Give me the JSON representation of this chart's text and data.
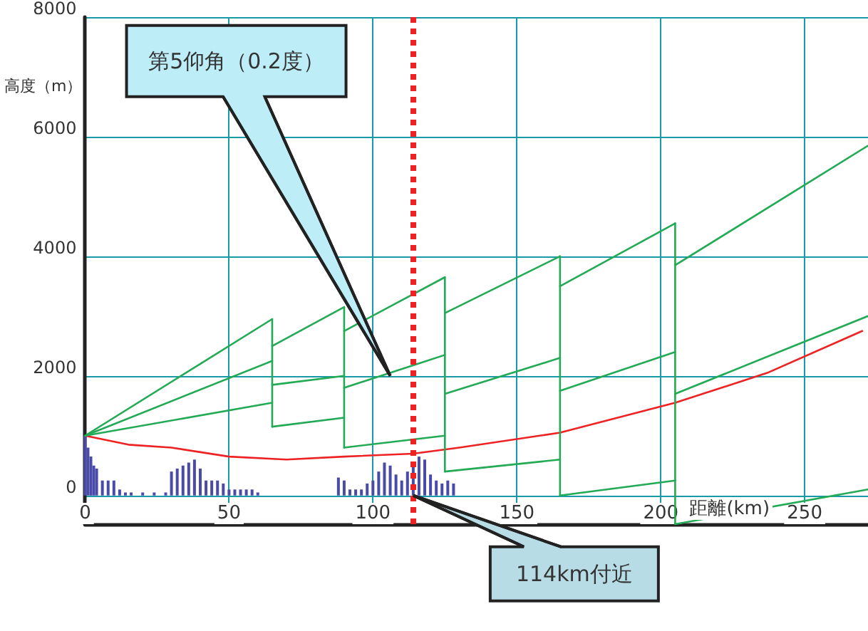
{
  "chart_data": {
    "type": "line",
    "xlabel": "距離(km)",
    "ylabel": "高度（m）",
    "xlim": [
      0,
      272
    ],
    "ylim": [
      -480,
      8000
    ],
    "xticks": [
      0,
      50,
      100,
      150,
      200,
      250
    ],
    "yticks": [
      0,
      2000,
      4000,
      6000,
      8000
    ],
    "grid": true,
    "marker": "none",
    "series": [
      {
        "type": "bar",
        "color": "#4a4aa8",
        "x": [
          0,
          1,
          2,
          3,
          4,
          6,
          8,
          10,
          12,
          14,
          16,
          20,
          24,
          28,
          30,
          32,
          34,
          36,
          38,
          40,
          42,
          44,
          46,
          48,
          50,
          52,
          54,
          56,
          58,
          60,
          88,
          90,
          92,
          94,
          96,
          98,
          100,
          102,
          104,
          106,
          108,
          110,
          112,
          114,
          116,
          118,
          120,
          122,
          124,
          126,
          128
        ],
        "values": [
          1000,
          800,
          650,
          500,
          450,
          250,
          250,
          250,
          100,
          50,
          50,
          50,
          50,
          50,
          400,
          450,
          500,
          550,
          600,
          450,
          250,
          250,
          250,
          200,
          100,
          100,
          100,
          100,
          100,
          50,
          300,
          250,
          100,
          100,
          100,
          200,
          250,
          400,
          550,
          500,
          350,
          250,
          400,
          500,
          650,
          600,
          350,
          250,
          200,
          250,
          200
        ]
      },
      {
        "color": "#ee2222",
        "x": [
          0,
          15,
          30,
          50,
          70,
          90,
          114,
          130,
          165,
          205,
          237,
          270
        ],
        "values": [
          1000,
          850,
          800,
          650,
          600,
          650,
          700,
          800,
          1050,
          1550,
          2050,
          2750
        ]
      },
      {
        "color": "#22aa55",
        "x": [
          0,
          65,
          null,
          65,
          90,
          null,
          90,
          125,
          null,
          125,
          165,
          null,
          165,
          205,
          null,
          205,
          272
        ],
        "values": [
          1000,
          2950,
          null,
          2500,
          3150,
          null,
          2750,
          3650,
          null,
          3050,
          4000,
          null,
          3500,
          4550,
          null,
          3850,
          5850
        ]
      },
      {
        "color": "#22aa55",
        "x": [
          0,
          65,
          null,
          65,
          90,
          null,
          90,
          125,
          null,
          125,
          165,
          null,
          165,
          205,
          null,
          205,
          272
        ],
        "values": [
          1000,
          2250,
          null,
          1850,
          2000,
          null,
          1800,
          2350,
          null,
          1700,
          2300,
          null,
          1750,
          2400,
          null,
          1700,
          3000
        ]
      },
      {
        "color": "#22aa55",
        "x": [
          0,
          65,
          null,
          65,
          90,
          null,
          90,
          125,
          null,
          125,
          165,
          null,
          165,
          205,
          null,
          205,
          272
        ],
        "values": [
          1000,
          1550,
          null,
          1150,
          1300,
          null,
          800,
          1000,
          null,
          400,
          600,
          null,
          0,
          250,
          null,
          -480,
          100
        ]
      },
      {
        "color": "#22aa55",
        "x": [
          65,
          65,
          null,
          90,
          90,
          null,
          125,
          125,
          null,
          165,
          165,
          null,
          205,
          205
        ],
        "values": [
          2950,
          1150,
          null,
          3150,
          800,
          null,
          3650,
          400,
          null,
          4000,
          0,
          null,
          4550,
          -480
        ]
      }
    ],
    "ref_lines": [
      {
        "axis": "x",
        "value": 114,
        "color": "#ee2222",
        "line_style": "dotted"
      }
    ],
    "annotations": [
      {
        "text": "第5仰角（0.2度）",
        "x": 106,
        "y": 2000
      },
      {
        "text": "114km付近",
        "x": 114,
        "y": 0
      }
    ]
  }
}
